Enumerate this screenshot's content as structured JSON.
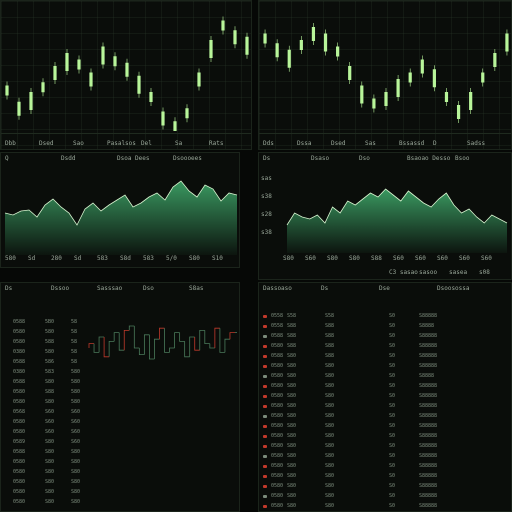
{
  "colors": {
    "bg": "#060806",
    "up": "#b8f59a",
    "area": "#3fa86a",
    "down": "#c0392b",
    "text": "#9aa89a"
  },
  "top_left": {
    "chart_data": {
      "type": "candlestick",
      "title": "",
      "series": [
        {
          "values": [
            14,
            9,
            12,
            15,
            20,
            24,
            22,
            18,
            26,
            23,
            21,
            17,
            12,
            6,
            3,
            7,
            18,
            28,
            34,
            31,
            29
          ]
        }
      ]
    },
    "toolbar": [
      "Dbb",
      "Dsed",
      "Sao",
      "Pasalsos",
      "Del",
      "Sa",
      "Rats"
    ]
  },
  "top_right": {
    "chart_data": {
      "type": "candlestick",
      "title": "",
      "series": [
        {
          "values": [
            30,
            27,
            25,
            28,
            32,
            30,
            26,
            20,
            14,
            10,
            12,
            16,
            18,
            22,
            19,
            12,
            8,
            12,
            18,
            24,
            30
          ]
        }
      ]
    },
    "toolbar": [
      "Dds",
      "Dssa",
      "Dsed",
      "Sas",
      "Bssassd",
      "D",
      "Sadss"
    ]
  },
  "mid_left": {
    "header": [
      "Q",
      "Dsdd",
      "Dsoa Dees",
      "Dsoooees"
    ],
    "ticks": [
      "580",
      "Sd",
      "280",
      "Sd",
      "583",
      "S8d",
      "583",
      "5/0",
      "S80",
      "S10"
    ],
    "chart_data": {
      "type": "area",
      "title": "",
      "series": [
        {
          "values": [
            42,
            40,
            44,
            45,
            38,
            50,
            56,
            48,
            42,
            30,
            46,
            52,
            44,
            50,
            55,
            60,
            48,
            52,
            58,
            62,
            55,
            68,
            74,
            64,
            58,
            70,
            66,
            54,
            62,
            60
          ]
        }
      ]
    }
  },
  "mid_right": {
    "header": [
      "Ds",
      "Dsaso",
      "Dso",
      "Bsaoao Desso",
      "Bsoo"
    ],
    "ticks": [
      "S80",
      "S60",
      "S80",
      "S80",
      "S88",
      "S60",
      "S60",
      "S60",
      "S60",
      "S60"
    ],
    "yticks": [
      "sas",
      "s38",
      "s28",
      "s38"
    ],
    "footer": [
      "C3 sasao",
      "sasoo",
      "sasea",
      "s08"
    ],
    "chart_data": {
      "type": "area",
      "title": "",
      "series": [
        {
          "values": [
            28,
            40,
            36,
            34,
            38,
            30,
            46,
            40,
            52,
            48,
            54,
            60,
            56,
            64,
            58,
            52,
            62,
            56,
            50,
            46,
            54,
            60,
            48,
            40,
            44,
            36,
            30,
            38,
            34,
            30
          ]
        }
      ]
    }
  },
  "bottom_left": {
    "header": [
      "Ds",
      "Dssoo",
      "Sasssao",
      "Dso",
      "S8as"
    ],
    "rows": [
      [
        "0588",
        "5B0",
        "58"
      ],
      [
        "0580",
        "580",
        "58"
      ],
      [
        "0580",
        "588",
        "58"
      ],
      [
        "0380",
        "580",
        "58"
      ],
      [
        "0588",
        "586",
        "58"
      ],
      [
        "0380",
        "583",
        "580"
      ],
      [
        "0588",
        "S80",
        "580"
      ],
      [
        "0580",
        "S88",
        "580"
      ],
      [
        "0580",
        "S80",
        "580"
      ],
      [
        "0568",
        "S60",
        "S60"
      ],
      [
        "0580",
        "S60",
        "S60"
      ],
      [
        "0580",
        "S60",
        "S60"
      ],
      [
        "0589",
        "S80",
        "S60"
      ],
      [
        "0588",
        "S80",
        "S80"
      ],
      [
        "0580",
        "S80",
        "S80"
      ],
      [
        "0580",
        "S80",
        "S80"
      ],
      [
        "0580",
        "S80",
        "S80"
      ],
      [
        "0580",
        "S80",
        "S80"
      ],
      [
        "0580",
        "S80",
        "S80"
      ]
    ],
    "chart_data": {
      "type": "line",
      "title": "",
      "series": [
        {
          "values": [
            30,
            34,
            26,
            40,
            22,
            36,
            44,
            28,
            46,
            50,
            30,
            24,
            42,
            20,
            38,
            48,
            26,
            30,
            44,
            36,
            22,
            40,
            28,
            46,
            34,
            30,
            48,
            26,
            38,
            44
          ]
        }
      ]
    }
  },
  "bottom_right": {
    "header": [
      "Dassoaso",
      "Ds",
      "Dse",
      "Dsoosossa"
    ],
    "rows": [
      [
        "0558",
        "S58",
        "S58",
        "S0",
        "S88888"
      ],
      [
        "0558",
        "S88",
        "S88",
        "S0",
        "S8888"
      ],
      [
        "0588",
        "S88",
        "S88",
        "S0",
        "S88888"
      ],
      [
        "0580",
        "S88",
        "S88",
        "S0",
        "S88888"
      ],
      [
        "0588",
        "S80",
        "S88",
        "S0",
        "S88888"
      ],
      [
        "0580",
        "S80",
        "S80",
        "S0",
        "S88888"
      ],
      [
        "0580",
        "S80",
        "S80",
        "S0",
        "S8888"
      ],
      [
        "0580",
        "S80",
        "S80",
        "S0",
        "S88888"
      ],
      [
        "0580",
        "S80",
        "S80",
        "S0",
        "S88888"
      ],
      [
        "0580",
        "S80",
        "S80",
        "S0",
        "S88888"
      ],
      [
        "0580",
        "S80",
        "S80",
        "S0",
        "S88888"
      ],
      [
        "0580",
        "S80",
        "S80",
        "S0",
        "S88888"
      ],
      [
        "0580",
        "S80",
        "S80",
        "S0",
        "S88888"
      ],
      [
        "0580",
        "S80",
        "S80",
        "S0",
        "S88888"
      ],
      [
        "0580",
        "S80",
        "S80",
        "S0",
        "S88888"
      ],
      [
        "0580",
        "S80",
        "S80",
        "S0",
        "S88888"
      ],
      [
        "0580",
        "S80",
        "S80",
        "S0",
        "S88888"
      ],
      [
        "0580",
        "S80",
        "S80",
        "S0",
        "S88888"
      ],
      [
        "0580",
        "S80",
        "S80",
        "S0",
        "S88888"
      ],
      [
        "0580",
        "S80",
        "S80",
        "S0",
        "S88888"
      ]
    ]
  }
}
